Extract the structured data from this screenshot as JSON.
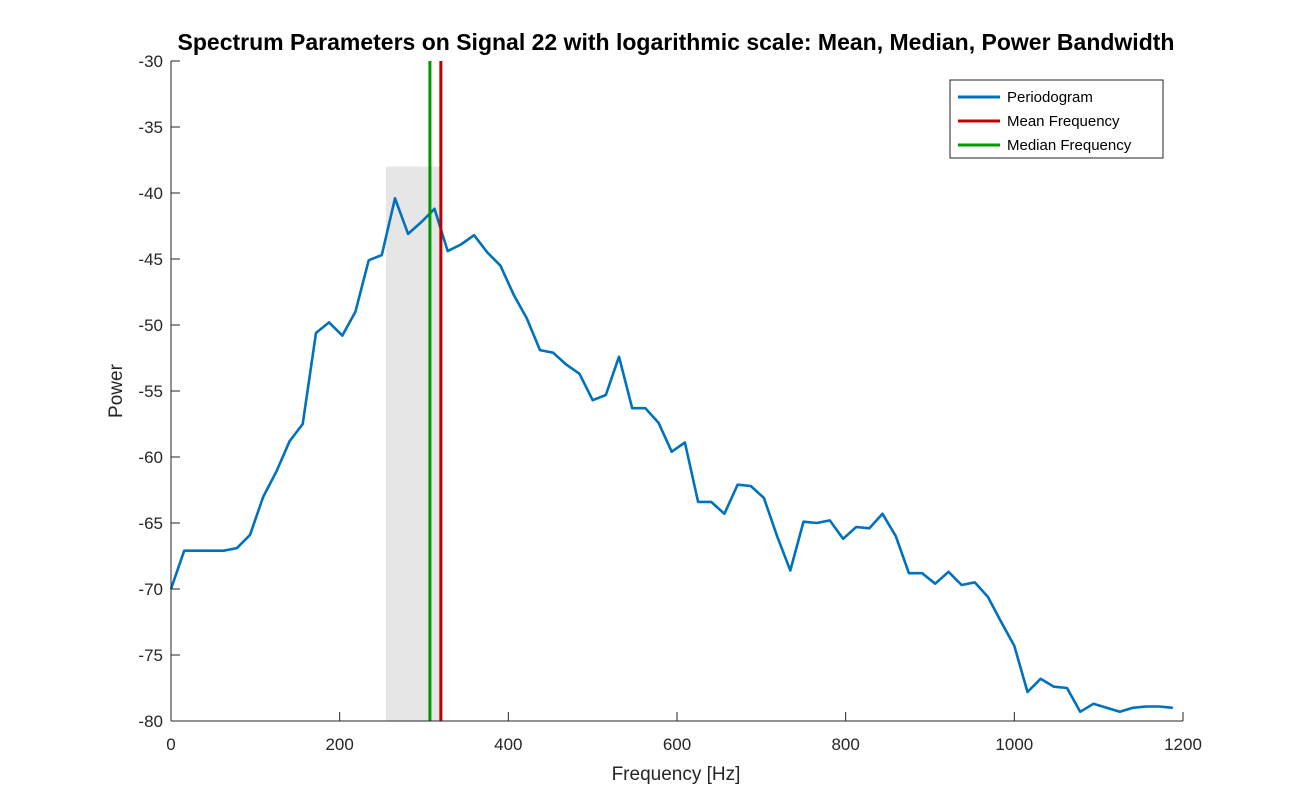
{
  "chart_data": {
    "type": "line",
    "title": "Spectrum Parameters on Signal 22 with logarithmic scale: Mean, Median, Power Bandwidth",
    "xlabel": "Frequency [Hz]",
    "ylabel": "Power",
    "xlim": [
      0,
      1200
    ],
    "ylim": [
      -80,
      -30
    ],
    "xticks": [
      0,
      200,
      400,
      600,
      800,
      1000,
      1200
    ],
    "yticks": [
      -30,
      -35,
      -40,
      -45,
      -50,
      -55,
      -60,
      -65,
      -70,
      -75,
      -80
    ],
    "grid": false,
    "legend_position": "top-right",
    "series": [
      {
        "name": "Periodogram",
        "color": "#0072BD",
        "x": [
          0,
          15.6,
          31.2,
          46.9,
          62.5,
          78.1,
          93.7,
          109.4,
          125.0,
          140.6,
          156.2,
          171.9,
          187.5,
          203.1,
          218.7,
          234.4,
          250.0,
          265.6,
          281.2,
          296.9,
          312.5,
          328.1,
          343.7,
          359.4,
          375.0,
          390.6,
          406.2,
          421.9,
          437.5,
          453.1,
          468.7,
          484.4,
          500.0,
          515.6,
          531.2,
          546.9,
          562.5,
          578.1,
          593.7,
          609.4,
          625.0,
          640.6,
          656.2,
          671.9,
          687.5,
          703.1,
          718.7,
          734.4,
          750.0,
          765.6,
          781.2,
          796.9,
          812.5,
          828.1,
          843.7,
          859.4,
          875.0,
          890.6,
          906.2,
          921.9,
          937.5,
          953.1,
          968.7,
          984.4,
          1000.0,
          1015.6,
          1031.2,
          1046.9,
          1062.5,
          1078.1,
          1093.7,
          1109.4,
          1125.0,
          1140.6,
          1156.2,
          1171.9,
          1187.5
        ],
        "values": [
          -70.0,
          -67.1,
          -67.1,
          -67.1,
          -67.1,
          -66.9,
          -65.9,
          -63.0,
          -61.1,
          -58.8,
          -57.5,
          -50.6,
          -49.8,
          -50.8,
          -49.0,
          -45.1,
          -44.7,
          -40.4,
          -43.1,
          -42.2,
          -41.2,
          -44.4,
          -43.9,
          -43.2,
          -44.5,
          -45.5,
          -47.7,
          -49.5,
          -51.9,
          -52.1,
          -53.0,
          -53.7,
          -55.7,
          -55.3,
          -52.4,
          -56.3,
          -56.3,
          -57.4,
          -59.6,
          -58.9,
          -63.4,
          -63.4,
          -64.3,
          -62.1,
          -62.2,
          -63.1,
          -66.0,
          -68.6,
          -64.9,
          -65.0,
          -64.8,
          -66.2,
          -65.3,
          -65.4,
          -64.3,
          -66.0,
          -68.8,
          -68.8,
          -69.6,
          -68.7,
          -69.7,
          -69.5,
          -70.6,
          -72.5,
          -74.3,
          -77.8,
          -76.8,
          -77.4,
          -77.5,
          -79.3,
          -78.7,
          -79.0,
          -79.3,
          -79.0,
          -78.9,
          -78.9,
          -79.0
        ]
      },
      {
        "name": "Mean Frequency",
        "color": "#C00000",
        "x": 320
      },
      {
        "name": "Median Frequency",
        "color": "#009900",
        "x": 307
      }
    ],
    "power_bandwidth_band": {
      "x": [
        255,
        320
      ],
      "y_top": -38,
      "color": "#E6E6E6"
    }
  }
}
